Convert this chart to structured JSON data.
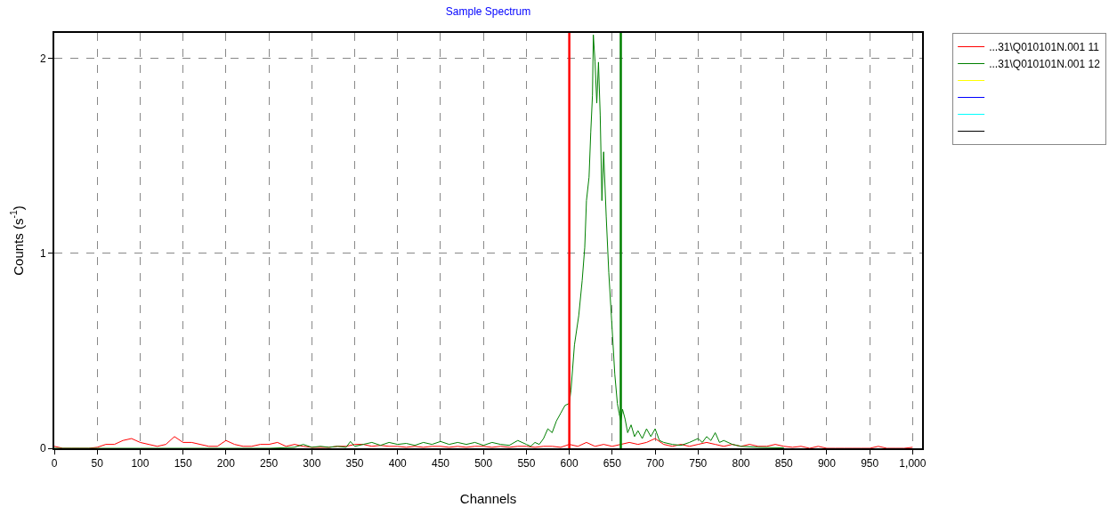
{
  "chart_data": {
    "type": "line",
    "title": "Sample Spectrum",
    "xlabel": "Channels",
    "ylabel": "Counts (s$^{-1}$)",
    "xlim": [
      0,
      1011
    ],
    "ylim": [
      0,
      2.13
    ],
    "xticks": [
      0,
      50,
      100,
      150,
      200,
      250,
      300,
      350,
      400,
      450,
      500,
      550,
      600,
      650,
      700,
      750,
      800,
      850,
      900,
      950,
      {
        "value": 1000,
        "label": "1,000"
      }
    ],
    "yticks": [
      0,
      1,
      2
    ],
    "grid": true,
    "legend": "top right",
    "line_style": "solid",
    "marker": "none",
    "ref_lines": [
      {
        "axis": "x",
        "value": 600,
        "color": "#ff0000"
      },
      {
        "axis": "x",
        "value": 660,
        "color": "#008000"
      }
    ],
    "series": [
      {
        "name": "...31\\Q010101N.001 11",
        "color": "#ff0000",
        "x": [
          0,
          10,
          20,
          30,
          40,
          50,
          60,
          70,
          80,
          90,
          100,
          110,
          120,
          130,
          140,
          150,
          160,
          170,
          180,
          190,
          200,
          210,
          220,
          230,
          240,
          250,
          260,
          270,
          280,
          290,
          300,
          310,
          320,
          330,
          340,
          350,
          360,
          370,
          380,
          390,
          400,
          410,
          420,
          430,
          440,
          450,
          460,
          470,
          480,
          490,
          500,
          510,
          520,
          530,
          540,
          550,
          560,
          570,
          580,
          590,
          600,
          610,
          620,
          630,
          640,
          650,
          660,
          670,
          680,
          690,
          700,
          710,
          720,
          730,
          740,
          750,
          760,
          770,
          780,
          790,
          800,
          810,
          820,
          830,
          840,
          850,
          860,
          870,
          880,
          890,
          900,
          910,
          920,
          930,
          940,
          950,
          960,
          970,
          980,
          990,
          1000
        ],
        "values": [
          0.01,
          0,
          0,
          0,
          0,
          0.005,
          0.02,
          0.02,
          0.04,
          0.05,
          0.03,
          0.02,
          0.01,
          0.02,
          0.06,
          0.03,
          0.03,
          0.02,
          0.01,
          0.01,
          0.04,
          0.02,
          0.01,
          0.01,
          0.02,
          0.02,
          0.03,
          0.01,
          0.02,
          0.01,
          0.005,
          0.005,
          0.005,
          0.01,
          0.01,
          0.02,
          0.02,
          0.01,
          0.015,
          0.01,
          0.01,
          0.005,
          0.01,
          0.005,
          0.01,
          0.01,
          0.005,
          0.01,
          0.005,
          0.01,
          0.01,
          0.005,
          0.01,
          0.005,
          0.01,
          0.01,
          0.005,
          0.01,
          0.01,
          0.005,
          0.02,
          0.01,
          0.03,
          0.01,
          0.02,
          0.01,
          0.02,
          0.03,
          0.02,
          0.03,
          0.05,
          0.02,
          0.01,
          0.02,
          0.01,
          0.02,
          0.03,
          0.02,
          0.01,
          0.02,
          0.01,
          0.02,
          0.01,
          0.01,
          0.02,
          0.01,
          0.005,
          0.01,
          0,
          0.01,
          0,
          0,
          0,
          0,
          0,
          0,
          0.01,
          0,
          0,
          0,
          0.005
        ]
      },
      {
        "name": "...31\\Q010101N.001 12",
        "color": "#008000",
        "x": [
          0,
          50,
          100,
          150,
          200,
          250,
          280,
          290,
          300,
          310,
          320,
          330,
          340,
          345,
          350,
          360,
          370,
          380,
          390,
          400,
          410,
          420,
          430,
          440,
          450,
          460,
          470,
          480,
          490,
          500,
          510,
          520,
          530,
          540,
          550,
          555,
          560,
          565,
          570,
          575,
          580,
          585,
          590,
          595,
          600,
          602,
          606,
          611,
          615,
          618,
          620,
          623,
          625,
          627,
          628,
          630,
          632,
          634,
          636,
          638,
          640,
          643,
          646,
          649,
          653,
          656,
          658,
          660,
          662,
          665,
          668,
          672,
          676,
          680,
          685,
          690,
          695,
          700,
          705,
          710,
          720,
          730,
          740,
          750,
          755,
          760,
          765,
          770,
          775,
          780,
          790,
          800,
          820,
          850
        ],
        "values": [
          0,
          0,
          0,
          0,
          0,
          0,
          0.005,
          0.02,
          0.005,
          0.01,
          0.005,
          0.01,
          0.005,
          0.035,
          0.01,
          0.02,
          0.03,
          0.015,
          0.03,
          0.02,
          0.025,
          0.015,
          0.03,
          0.02,
          0.035,
          0.02,
          0.03,
          0.02,
          0.03,
          0.015,
          0.03,
          0.02,
          0.015,
          0.04,
          0.02,
          0.01,
          0.03,
          0.02,
          0.05,
          0.1,
          0.08,
          0.14,
          0.18,
          0.22,
          0.23,
          0.3,
          0.53,
          0.68,
          0.86,
          1.03,
          1.27,
          1.39,
          1.62,
          1.81,
          2.12,
          1.98,
          1.77,
          1.98,
          1.71,
          1.27,
          1.52,
          1.19,
          0.9,
          0.68,
          0.38,
          0.23,
          0.18,
          0.14,
          0.2,
          0.15,
          0.08,
          0.12,
          0.06,
          0.09,
          0.05,
          0.1,
          0.06,
          0.1,
          0.04,
          0.03,
          0.02,
          0.015,
          0.03,
          0.05,
          0.03,
          0.06,
          0.04,
          0.08,
          0.03,
          0.04,
          0.02,
          0.01,
          0.005,
          0.002
        ]
      },
      {
        "color": "#ffff00"
      },
      {
        "color": "#0000ff"
      },
      {
        "color": "#00ffff"
      },
      {
        "color": "#000000"
      }
    ]
  }
}
